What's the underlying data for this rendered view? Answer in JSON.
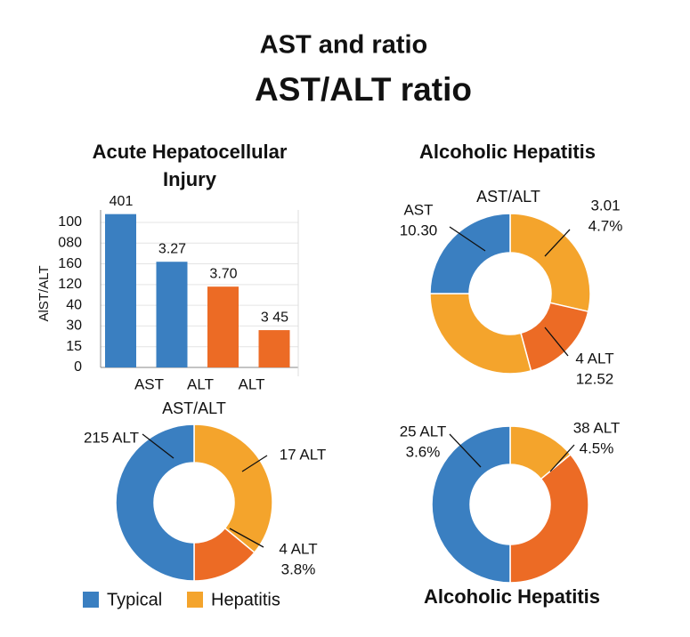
{
  "title": "AST and ratio",
  "subtitle": "AST/ALT ratio",
  "chart_data": [
    {
      "type": "bar",
      "title": [
        "Acute Hepatocellular",
        "Injury"
      ],
      "y_label": "AlST/ALT",
      "categories": [
        null,
        "AST",
        "ALT",
        "ALT"
      ],
      "values": [
        7.4,
        5.1,
        3.9,
        1.8
      ],
      "colors": [
        "#3a7fc1",
        "#3a7fc1",
        "#ec6b25",
        "#ec6b25"
      ],
      "annotations": [
        "401",
        "3.27",
        "3.70",
        "3 45"
      ],
      "ylim": [
        0,
        7.6
      ],
      "yticks": [
        0,
        {
          "value": 1,
          "label": "15"
        },
        {
          "value": 2,
          "label": "30"
        },
        {
          "value": 3,
          "label": "40"
        },
        {
          "value": 4,
          "label": "120"
        },
        {
          "value": 5,
          "label": "160"
        },
        {
          "value": 6,
          "label": "080"
        },
        {
          "value": 7,
          "label": "100"
        }
      ],
      "grid": true
    },
    {
      "type": "donut",
      "title": "Alcoholic Hepatitis",
      "center_label": "AST/ALT",
      "values": [
        28.6,
        17.2,
        29.2,
        25
      ],
      "colors": [
        "#f4a42c",
        "#ec6b25",
        "#f4a42c",
        "#3a7fc1"
      ],
      "annotations": [
        [
          "3.01",
          "4.7%"
        ],
        [
          "4 ALT",
          "12.52"
        ],
        [
          "AST",
          "10.30"
        ]
      ]
    },
    {
      "type": "donut",
      "title": "AST/ALT",
      "values": [
        36,
        14,
        50
      ],
      "colors": [
        "#f4a42c",
        "#ec6b25",
        "#3a7fc1"
      ],
      "annotations": [
        [
          "17 ALT"
        ],
        [
          "4 ALT",
          "3.8%"
        ],
        [
          "215 ALT"
        ]
      ]
    },
    {
      "type": "donut",
      "title": "Alcoholic Hepatitis",
      "values": [
        14,
        36,
        50
      ],
      "colors": [
        "#f4a42c",
        "#ec6b25",
        "#3a7fc1"
      ],
      "annotations": [
        [
          "38 ALT",
          "4.5%"
        ],
        [
          "25 ALT",
          "3.6%"
        ]
      ]
    }
  ],
  "legend": [
    {
      "name": "Typical",
      "color": "#3a7fc1"
    },
    {
      "name": "Hepatitis",
      "color": "#f4a42c"
    }
  ]
}
